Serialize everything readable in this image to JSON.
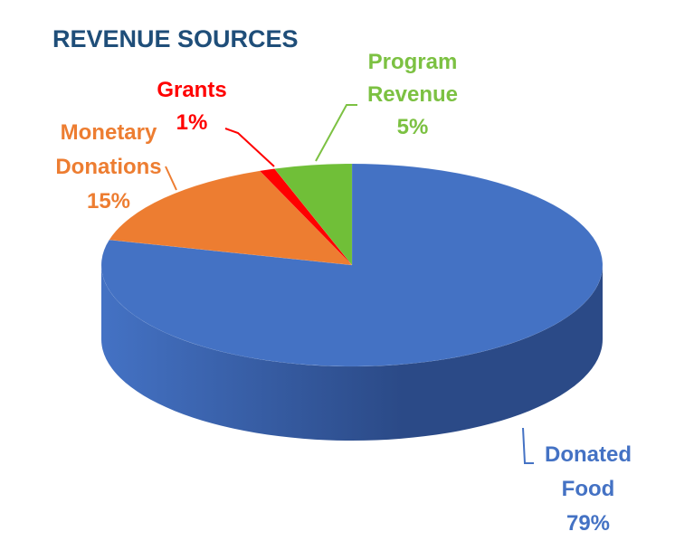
{
  "chart_data": {
    "type": "pie",
    "title": "REVENUE SOURCES",
    "style": "3d-pie",
    "start_angle_deg": 0,
    "direction": "clockwise",
    "labels_outside": true,
    "slices": [
      {
        "name": "Donated Food",
        "label_lines": [
          "Donated",
          "Food"
        ],
        "value": 79,
        "pct_label": "79%",
        "color": "#4472C4",
        "side_color": "#2B4A87"
      },
      {
        "name": "Monetary Donations",
        "label_lines": [
          "Monetary",
          "Donations"
        ],
        "value": 15,
        "pct_label": "15%",
        "color": "#ED7D31",
        "side_color": "#A9561E"
      },
      {
        "name": "Grants",
        "label_lines": [
          "Grants"
        ],
        "value": 1,
        "pct_label": "1%",
        "color": "#FF0000",
        "side_color": "#B00000"
      },
      {
        "name": "Program Revenue",
        "label_lines": [
          "Program",
          "Revenue"
        ],
        "value": 5,
        "pct_label": "5%",
        "color": "#70BF38",
        "side_color": "#4E8A26"
      }
    ],
    "title_color": "#1F4E79",
    "label_colors": {
      "Donated Food": "#4472C4",
      "Monetary Donations": "#ED7D31",
      "Grants": "#FF0000",
      "Program Revenue": "#7CC142"
    }
  }
}
